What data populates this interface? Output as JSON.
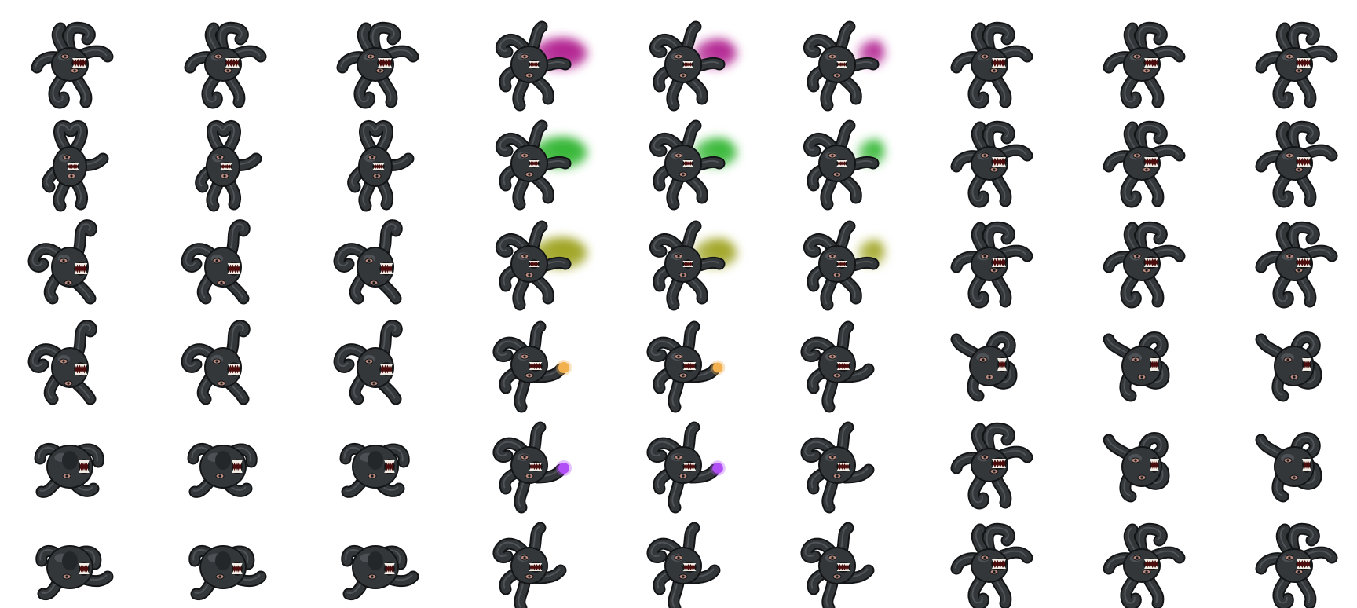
{
  "sheet": {
    "columns": 9,
    "rows": 6
  },
  "palette": {
    "body": "#33373a",
    "outline": "#121416",
    "highlight": "#676c70",
    "mouth": "#4a0c0c",
    "tooth": "#f1ece4",
    "eye": "#b98b80",
    "purple": "#b0208f",
    "green": "#2fb52f",
    "olive": "#9ea21f",
    "orange": "#f2b04f",
    "violet": "#b24ef5"
  },
  "frames": [
    {
      "pose": "front",
      "fx": "none"
    },
    {
      "pose": "front",
      "fx": "none"
    },
    {
      "pose": "front",
      "fx": "none"
    },
    {
      "pose": "cast-right",
      "fx": "cloud",
      "color": "purple",
      "fxLevel": 1
    },
    {
      "pose": "cast-right",
      "fx": "cloud",
      "color": "purple",
      "fxLevel": 0.8
    },
    {
      "pose": "cast-right",
      "fx": "cloud",
      "color": "purple",
      "fxLevel": 0.5
    },
    {
      "pose": "front",
      "fx": "none"
    },
    {
      "pose": "front",
      "fx": "none"
    },
    {
      "pose": "front",
      "fx": "none"
    },
    {
      "pose": "heart",
      "fx": "none"
    },
    {
      "pose": "heart",
      "fx": "none"
    },
    {
      "pose": "heart",
      "fx": "none"
    },
    {
      "pose": "cast-right",
      "fx": "cloud",
      "color": "green",
      "fxLevel": 1
    },
    {
      "pose": "cast-right",
      "fx": "cloud",
      "color": "green",
      "fxLevel": 0.8
    },
    {
      "pose": "cast-right",
      "fx": "cloud",
      "color": "green",
      "fxLevel": 0.5
    },
    {
      "pose": "front",
      "fx": "none"
    },
    {
      "pose": "front",
      "fx": "none"
    },
    {
      "pose": "front",
      "fx": "none"
    },
    {
      "pose": "side",
      "fx": "none"
    },
    {
      "pose": "side",
      "fx": "none"
    },
    {
      "pose": "side",
      "fx": "none"
    },
    {
      "pose": "cast-right",
      "fx": "cloud",
      "color": "olive",
      "fxLevel": 1
    },
    {
      "pose": "cast-right",
      "fx": "cloud",
      "color": "olive",
      "fxLevel": 0.8
    },
    {
      "pose": "cast-right",
      "fx": "cloud",
      "color": "olive",
      "fxLevel": 0.5
    },
    {
      "pose": "front",
      "fx": "none"
    },
    {
      "pose": "front",
      "fx": "none"
    },
    {
      "pose": "front",
      "fx": "none"
    },
    {
      "pose": "side",
      "fx": "none"
    },
    {
      "pose": "side",
      "fx": "none"
    },
    {
      "pose": "side",
      "fx": "none"
    },
    {
      "pose": "reach",
      "fx": "orb",
      "color": "orange",
      "fxLevel": 1
    },
    {
      "pose": "reach",
      "fx": "orb",
      "color": "orange",
      "fxLevel": 0.7
    },
    {
      "pose": "reach",
      "fx": "none"
    },
    {
      "pose": "curl",
      "fx": "none"
    },
    {
      "pose": "curl",
      "fx": "none"
    },
    {
      "pose": "curl",
      "fx": "none"
    },
    {
      "pose": "ball",
      "fx": "none"
    },
    {
      "pose": "ball",
      "fx": "none"
    },
    {
      "pose": "ball",
      "fx": "none"
    },
    {
      "pose": "reach",
      "fx": "orb",
      "color": "violet",
      "fxLevel": 1
    },
    {
      "pose": "reach",
      "fx": "orb",
      "color": "violet",
      "fxLevel": 0.9
    },
    {
      "pose": "reach",
      "fx": "none"
    },
    {
      "pose": "front",
      "fx": "none"
    },
    {
      "pose": "curl",
      "fx": "none"
    },
    {
      "pose": "curl",
      "fx": "none"
    },
    {
      "pose": "ball-tail",
      "fx": "none"
    },
    {
      "pose": "ball-tail",
      "fx": "none"
    },
    {
      "pose": "ball-tail",
      "fx": "none"
    },
    {
      "pose": "reach",
      "fx": "none"
    },
    {
      "pose": "reach",
      "fx": "none"
    },
    {
      "pose": "reach",
      "fx": "none"
    },
    {
      "pose": "front",
      "fx": "none"
    },
    {
      "pose": "front",
      "fx": "none"
    },
    {
      "pose": "front",
      "fx": "none"
    }
  ]
}
